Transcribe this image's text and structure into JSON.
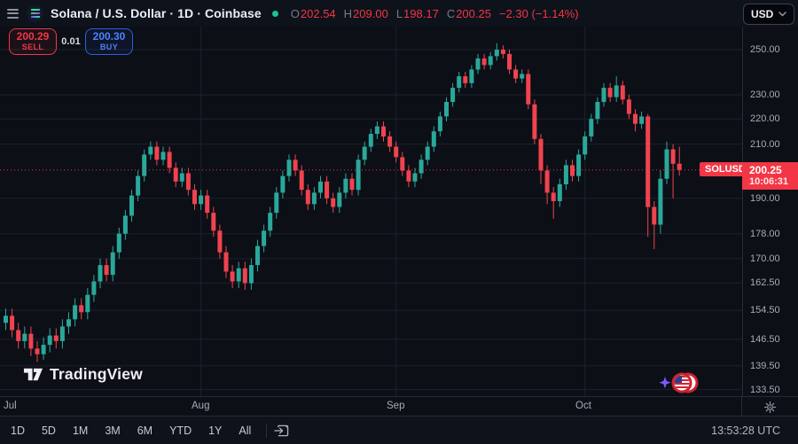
{
  "header": {
    "symbol_title": "Solana / U.S. Dollar · 1D · Coinbase",
    "status": "market-open",
    "ohlc_fields": [
      {
        "label": "O",
        "value": "202.54"
      },
      {
        "label": "H",
        "value": "209.00"
      },
      {
        "label": "L",
        "value": "198.17"
      },
      {
        "label": "C",
        "value": "200.25"
      }
    ],
    "change_text": "−2.30 (−1.14%)",
    "currency": "USD"
  },
  "order_panel": {
    "sell_price": "200.29",
    "sell_label": "SELL",
    "spread": "0.01",
    "buy_price": "200.30",
    "buy_label": "BUY"
  },
  "price_scale": {
    "ticks": [
      {
        "label": "250.00",
        "value": 250
      },
      {
        "label": "230.00",
        "value": 230
      },
      {
        "label": "220.00",
        "value": 220
      },
      {
        "label": "210.00",
        "value": 210
      },
      {
        "label": "190.00",
        "value": 190
      },
      {
        "label": "178.00",
        "value": 178
      },
      {
        "label": "170.00",
        "value": 170
      },
      {
        "label": "162.50",
        "value": 162.5
      },
      {
        "label": "154.50",
        "value": 154.5
      },
      {
        "label": "146.50",
        "value": 146.5
      },
      {
        "label": "139.50",
        "value": 139.5
      },
      {
        "label": "133.50",
        "value": 133.5
      }
    ],
    "last_price": "200.25",
    "last_price_value": 200.25,
    "countdown": "10:06:31",
    "symbol_tag": "SOLUSD"
  },
  "time_scale": {
    "months": [
      {
        "label": "Jul",
        "candle_index": 0
      },
      {
        "label": "Aug",
        "candle_index": 31
      },
      {
        "label": "Sep",
        "candle_index": 62
      },
      {
        "label": "Oct",
        "candle_index": 92
      }
    ]
  },
  "watermark": "TradingView",
  "footer": {
    "ranges": [
      "1D",
      "5D",
      "1M",
      "3M",
      "6M",
      "YTD",
      "1Y",
      "All"
    ],
    "clock": "13:53:28 UTC"
  },
  "colors": {
    "up": "#2aa89a",
    "down": "#f0434f",
    "accent_red": "#f23645",
    "buy_blue": "#2962ff",
    "grid": "#1b212e",
    "axis_text": "#a6abb5"
  },
  "chart_data": {
    "type": "candlestick",
    "symbol": "SOLUSD",
    "exchange": "Coinbase",
    "interval": "1D",
    "title": "Solana / U.S. Dollar",
    "scale": "logarithmic",
    "x_range": "Jul 1 – Oct 16",
    "y_ticks": [
      250,
      230,
      220,
      210,
      190,
      178,
      170,
      162.5,
      154.5,
      146.5,
      139.5,
      133.5
    ],
    "x_tick_labels": [
      "Jul",
      "Aug",
      "Sep",
      "Oct"
    ],
    "last_candle": {
      "open": 202.54,
      "high": 209.0,
      "low": 198.17,
      "close": 200.25,
      "change": -2.3,
      "change_pct": -1.14
    },
    "ohlc": [
      [
        151,
        155,
        149,
        153
      ],
      [
        153,
        155,
        147,
        149
      ],
      [
        149,
        151,
        144,
        146
      ],
      [
        146,
        150,
        144,
        148
      ],
      [
        148,
        150,
        142,
        144
      ],
      [
        144,
        146,
        140.5,
        142.5
      ],
      [
        142.5,
        147,
        141,
        145
      ],
      [
        145,
        149.5,
        143,
        147.5
      ],
      [
        147.5,
        149.5,
        144,
        146
      ],
      [
        146,
        152,
        144,
        150
      ],
      [
        150,
        154,
        148,
        152
      ],
      [
        152,
        158,
        150,
        156
      ],
      [
        156,
        158,
        152,
        154
      ],
      [
        154,
        161,
        152,
        159
      ],
      [
        159,
        165,
        157,
        163
      ],
      [
        163,
        170,
        161,
        168
      ],
      [
        168,
        170,
        163,
        165
      ],
      [
        165,
        174,
        163,
        172
      ],
      [
        172,
        180,
        170,
        178
      ],
      [
        178,
        186,
        176,
        184
      ],
      [
        184,
        193,
        182,
        191
      ],
      [
        191,
        200,
        189,
        198
      ],
      [
        198,
        208,
        196,
        206
      ],
      [
        206,
        211,
        204,
        209
      ],
      [
        209,
        211,
        202,
        204
      ],
      [
        204,
        209,
        202,
        207
      ],
      [
        207,
        209,
        199,
        201
      ],
      [
        201,
        203,
        194,
        196
      ],
      [
        196,
        201,
        194,
        199
      ],
      [
        199,
        201,
        191,
        193
      ],
      [
        193,
        195,
        186,
        188
      ],
      [
        188,
        193,
        186,
        191
      ],
      [
        191,
        193,
        183,
        185
      ],
      [
        185,
        187,
        177,
        179
      ],
      [
        179,
        181,
        170,
        172
      ],
      [
        172,
        174,
        164,
        166
      ],
      [
        166,
        168,
        161,
        163
      ],
      [
        163,
        169,
        161,
        167
      ],
      [
        167,
        169,
        160.5,
        162.5
      ],
      [
        162.5,
        170,
        160.5,
        168
      ],
      [
        168,
        176,
        166,
        174
      ],
      [
        174,
        181,
        172,
        179
      ],
      [
        179,
        187,
        177,
        185
      ],
      [
        185,
        194,
        183,
        192
      ],
      [
        192,
        200,
        190,
        198
      ],
      [
        198,
        206,
        196,
        204
      ],
      [
        204,
        206,
        198,
        200
      ],
      [
        200,
        202,
        191,
        193
      ],
      [
        193,
        195,
        186,
        188
      ],
      [
        188,
        194,
        186,
        192
      ],
      [
        192,
        198,
        190,
        196
      ],
      [
        196,
        198,
        188,
        190
      ],
      [
        190,
        192,
        185,
        187
      ],
      [
        187,
        194,
        185,
        192
      ],
      [
        192,
        199,
        190,
        197
      ],
      [
        197,
        199,
        191,
        193
      ],
      [
        193,
        206,
        191,
        204
      ],
      [
        204,
        211,
        202,
        209
      ],
      [
        209,
        216,
        207,
        214
      ],
      [
        214,
        219,
        212,
        217
      ],
      [
        217,
        219,
        211,
        213
      ],
      [
        213,
        215,
        207,
        209
      ],
      [
        209,
        211,
        203,
        205
      ],
      [
        205,
        207,
        198,
        200
      ],
      [
        200,
        202,
        194,
        196
      ],
      [
        196,
        201,
        194,
        199
      ],
      [
        199,
        206,
        197,
        204
      ],
      [
        204,
        211,
        202,
        209
      ],
      [
        209,
        217,
        207,
        215
      ],
      [
        215,
        223,
        213,
        221
      ],
      [
        221,
        229,
        219,
        227
      ],
      [
        227,
        235,
        225,
        233
      ],
      [
        233,
        240,
        231,
        238
      ],
      [
        238,
        240,
        233,
        235
      ],
      [
        235,
        243,
        233,
        241
      ],
      [
        241,
        248,
        239,
        246
      ],
      [
        246,
        248,
        241,
        243
      ],
      [
        243,
        249,
        241,
        247
      ],
      [
        247,
        253,
        245,
        250
      ],
      [
        250,
        252,
        246,
        248
      ],
      [
        248,
        250,
        239,
        241
      ],
      [
        241,
        243,
        235,
        237
      ],
      [
        237,
        241,
        235,
        239
      ],
      [
        239,
        241,
        224,
        226
      ],
      [
        226,
        228,
        210,
        212
      ],
      [
        212,
        214,
        195,
        200
      ],
      [
        200,
        202,
        188,
        192
      ],
      [
        192,
        194,
        183,
        189
      ],
      [
        189,
        197,
        187,
        195
      ],
      [
        195,
        204,
        193,
        202
      ],
      [
        202,
        204,
        196,
        198
      ],
      [
        198,
        208,
        196,
        206
      ],
      [
        206,
        215,
        204,
        213
      ],
      [
        213,
        222,
        211,
        220
      ],
      [
        220,
        229,
        218,
        227
      ],
      [
        227,
        235,
        225,
        233
      ],
      [
        233,
        235,
        227,
        229
      ],
      [
        229,
        238,
        227,
        234
      ],
      [
        234,
        236,
        226,
        228
      ],
      [
        228,
        230,
        220,
        222
      ],
      [
        222,
        224,
        215,
        218
      ],
      [
        218,
        223,
        216,
        221
      ],
      [
        221,
        222,
        177,
        187
      ],
      [
        187,
        189,
        173,
        181
      ],
      [
        181,
        200,
        178,
        197
      ],
      [
        197,
        211,
        195,
        208
      ],
      [
        208,
        210,
        190,
        202.54
      ],
      [
        202.54,
        209,
        198.17,
        200.25
      ]
    ]
  }
}
